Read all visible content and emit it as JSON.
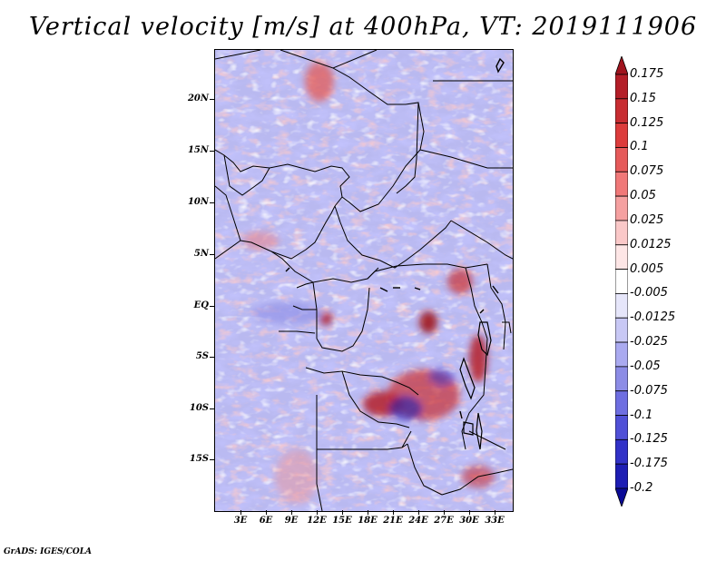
{
  "title": "Vertical velocity [m/s] at 400hPa, VT: 2019111906",
  "credit": "GrADS: IGES/COLA",
  "latitude_labels": [
    "20N",
    "15N",
    "10N",
    "5N",
    "EQ",
    "5S",
    "10S",
    "15S"
  ],
  "longitude_labels": [
    "3E",
    "6E",
    "9E",
    "12E",
    "15E",
    "18E",
    "21E",
    "24E",
    "27E",
    "30E",
    "33E"
  ],
  "colorbar": {
    "labels": [
      "0.175",
      "0.15",
      "0.125",
      "0.1",
      "0.075",
      "0.05",
      "0.025",
      "0.0125",
      "0.005",
      "-0.005",
      "-0.0125",
      "-0.025",
      "-0.05",
      "-0.075",
      "-0.1",
      "-0.125",
      "-0.175",
      "-0.2"
    ],
    "colors": [
      "#a0141e",
      "#b41e28",
      "#c82d32",
      "#dc3c3c",
      "#e65a5a",
      "#f07878",
      "#f5a0a0",
      "#fac8c8",
      "#fde6e6",
      "#ffffff",
      "#e6e6fa",
      "#c8c8f5",
      "#aaaaf0",
      "#8c8ce6",
      "#6e6ee1",
      "#5050d7",
      "#3232c8",
      "#1e1eb4",
      "#0a0a96"
    ]
  },
  "chart_data": {
    "type": "heatmap",
    "title": "Vertical velocity [m/s] at 400hPa, VT: 2019111906",
    "variable": "Vertical velocity",
    "units": "m/s",
    "level": "400hPa",
    "valid_time": "2019111906",
    "lat_range": [
      -20,
      24.5
    ],
    "lon_range": [
      0,
      35
    ],
    "color_levels": [
      -0.2,
      -0.175,
      -0.125,
      -0.1,
      -0.075,
      -0.05,
      -0.025,
      -0.0125,
      -0.005,
      0.005,
      0.0125,
      0.025,
      0.05,
      0.075,
      0.1,
      0.125,
      0.15,
      0.175
    ]
  }
}
